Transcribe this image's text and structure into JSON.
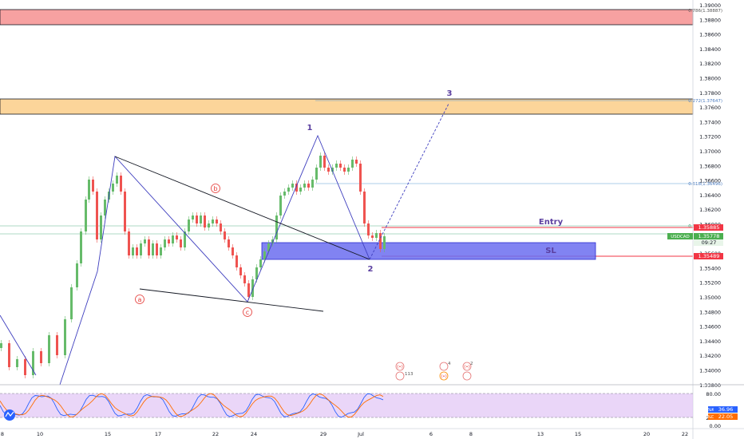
{
  "symbol": "USDCAD",
  "price_axis": {
    "ticks": [
      "1.39000",
      "1.38800",
      "1.38600",
      "1.38400",
      "1.38200",
      "1.38000",
      "1.37800",
      "1.37600",
      "1.37400",
      "1.37200",
      "1.37000",
      "1.36800",
      "1.36600",
      "1.36400",
      "1.36200",
      "1.36000",
      "1.35800",
      "1.35600",
      "1.35400",
      "1.35200",
      "1.35000",
      "1.34800",
      "1.34600",
      "1.34400",
      "1.34200",
      "1.34000",
      "1.33800"
    ],
    "badges": {
      "entry": {
        "value": "1.35885",
        "color": "#f23645"
      },
      "current": {
        "value": "1.35778",
        "color": "#4caf50"
      },
      "countdown": {
        "value": "09:27",
        "color": "#131722"
      },
      "sl": {
        "value": "1.35489",
        "color": "#f23645"
      }
    }
  },
  "time_axis": {
    "labels": [
      "8",
      "10",
      "15",
      "17",
      "22",
      "24",
      "29",
      "Jul",
      "6",
      "8",
      "13",
      "15",
      "20",
      "22"
    ]
  },
  "fib_labels": {
    "f786": "0.786(1.38887)",
    "f272": "0.272(1.37647)",
    "f618": "0.618(1.36496)",
    "f382": "0.382(1.35914)"
  },
  "annotations": {
    "entry": "Entry",
    "sl": "SL",
    "wave_1": "1",
    "wave_2": "2",
    "wave_3": "3",
    "wave_a": "a",
    "wave_b": "b",
    "wave_c": "c"
  },
  "events": {
    "e1": "113",
    "e2": "4",
    "e3": "2"
  },
  "oscillator": {
    "ticks": [
      "80.00",
      "20.00",
      "0.00"
    ],
    "k_label": "%K",
    "k_value": "36.96",
    "d_label": "%D",
    "d_value": "22.05"
  },
  "colors": {
    "bull": "#66bb6a",
    "bear": "#ef5350",
    "resistance_zone": "#f7a1a1",
    "target_zone": "#fcd59a",
    "entry_zone": "#6b6df0",
    "entry_line": "#f23645",
    "oscillator_bg": "#e1c4f5",
    "k_line": "#2962ff",
    "d_line": "#ff6d00",
    "wave_text": "#5b3fa0"
  }
}
